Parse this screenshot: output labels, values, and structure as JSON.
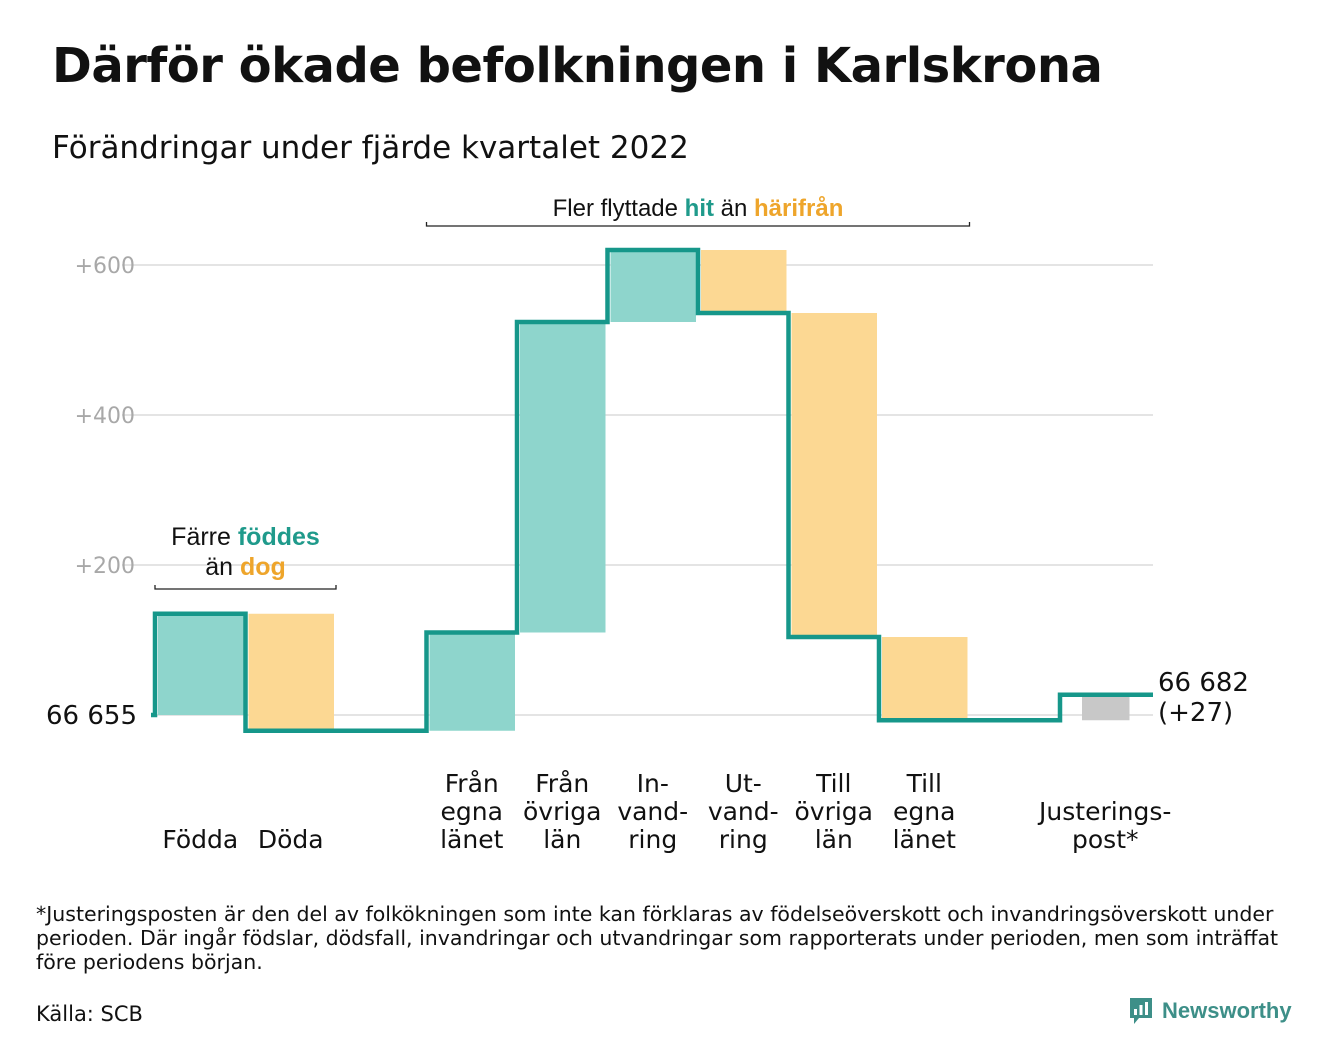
{
  "title": "Därför ökade befolkningen i Karlskrona",
  "subtitle": "Förändringar under fjärde kvartalet 2022",
  "colors": {
    "inflow": "#8ed5cc",
    "outflow": "#fcd893",
    "adjustment": "#c8c8c8",
    "line": "#16978a",
    "accent_teal": "#1f9a8b",
    "accent_orange": "#eea52b",
    "grid": "#e4e4e4",
    "tick": "#a8a8a8"
  },
  "chart_data": {
    "type": "waterfall",
    "start_value": 66655,
    "start_label": "66 655",
    "end_label": "66 682",
    "end_change_label": "(+27)",
    "yticks": [
      {
        "value": 200,
        "label": "+200"
      },
      {
        "value": 400,
        "label": "+400"
      },
      {
        "value": 600,
        "label": "+600"
      }
    ],
    "ylim": [
      -60,
      660
    ],
    "grid": true,
    "steps": [
      {
        "category": "Födda",
        "label_lines": [
          "Födda"
        ],
        "change": 135,
        "kind": "inflow"
      },
      {
        "category": "Döda",
        "label_lines": [
          "Döda"
        ],
        "change": -156,
        "kind": "outflow"
      },
      {
        "category": "",
        "label_lines": [],
        "change": 0,
        "kind": "gap"
      },
      {
        "category": "Från egna länet",
        "label_lines": [
          "Från",
          "egna",
          "länet"
        ],
        "change": 131,
        "kind": "inflow"
      },
      {
        "category": "Från övriga län",
        "label_lines": [
          "Från",
          "övriga",
          "län"
        ],
        "change": 414,
        "kind": "inflow"
      },
      {
        "category": "Invandring",
        "label_lines": [
          "In-",
          "vand-",
          "ring"
        ],
        "change": 96,
        "kind": "inflow"
      },
      {
        "category": "Utvandring",
        "label_lines": [
          "Ut-",
          "vand-",
          "ring"
        ],
        "change": -84,
        "kind": "outflow"
      },
      {
        "category": "Till övriga län",
        "label_lines": [
          "Till",
          "övriga",
          "län"
        ],
        "change": -432,
        "kind": "outflow"
      },
      {
        "category": "Till egna länet",
        "label_lines": [
          "Till",
          "egna",
          "länet"
        ],
        "change": -111,
        "kind": "outflow"
      },
      {
        "category": "",
        "label_lines": [],
        "change": 0,
        "kind": "gap"
      },
      {
        "category": "Justeringspost*",
        "label_lines": [
          "Justerings-",
          "post*"
        ],
        "change": 34,
        "kind": "adjustment"
      }
    ],
    "annotations": [
      {
        "id": "natural",
        "from_step": 0,
        "to_step": 1,
        "lines": [
          [
            {
              "text": "Färre ",
              "style": "plain"
            },
            {
              "text": "föddes",
              "style": "teal"
            }
          ],
          [
            {
              "text": "än ",
              "style": "plain"
            },
            {
              "text": "dog",
              "style": "orange"
            }
          ]
        ]
      },
      {
        "id": "migration",
        "from_step": 3,
        "to_step": 8,
        "lines": [
          [
            {
              "text": "Fler flyttade ",
              "style": "plain"
            },
            {
              "text": "hit",
              "style": "teal"
            },
            {
              "text": " än ",
              "style": "plain"
            },
            {
              "text": "härifrån",
              "style": "orange"
            }
          ]
        ]
      }
    ]
  },
  "footnote": "*Justeringsposten är den del av folkökningen som inte kan förklaras av födelseöverskott och invandringsöverskott under perioden. Där ingår födslar, dödsfall, invandringar och utvandringar som rapporterats under perioden, men som inträffat före periodens början.",
  "source": "Källa: SCB",
  "brand": {
    "name": "Newsworthy",
    "icon": "newsworthy-logo-icon"
  }
}
